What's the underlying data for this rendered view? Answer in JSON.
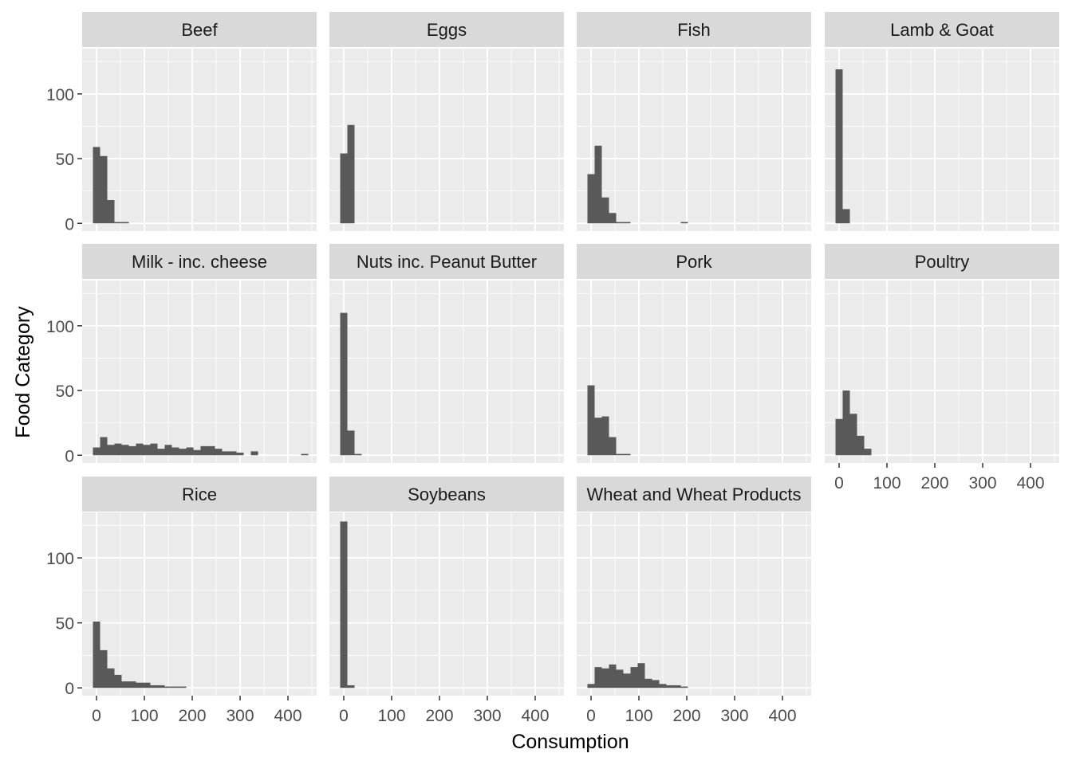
{
  "chart_data": {
    "type": "bar",
    "subtype": "faceted-histogram",
    "xlabel": "Consumption",
    "ylabel": "Food Category",
    "xlim": [
      -30,
      460
    ],
    "ylim": [
      -6,
      135
    ],
    "x_ticks": [
      0,
      100,
      200,
      300,
      400
    ],
    "y_ticks": [
      0,
      50,
      100
    ],
    "bin_width": 15,
    "first_bin_center": 0,
    "grid": true,
    "legend": "none",
    "colors": {
      "bar": "#595959",
      "panel_bg": "#ebebeb",
      "strip_bg": "#d9d9d9",
      "grid": "#ffffff",
      "tick_text": "#4d4d4d",
      "strip_text": "#1a1a1a",
      "axis_title": "#000000"
    },
    "panels": [
      {
        "name": "Beef",
        "counts": [
          59,
          52,
          18,
          1,
          1
        ]
      },
      {
        "name": "Eggs",
        "counts": [
          54,
          76
        ]
      },
      {
        "name": "Fish",
        "counts": [
          38,
          60,
          20,
          8,
          1,
          1,
          0,
          0,
          0,
          0,
          0,
          0,
          0,
          1
        ]
      },
      {
        "name": "Lamb & Goat",
        "counts": [
          119,
          11
        ]
      },
      {
        "name": "Milk - inc. cheese",
        "counts": [
          6,
          14,
          8,
          9,
          8,
          7,
          9,
          8,
          9,
          5,
          8,
          6,
          5,
          6,
          4,
          7,
          7,
          5,
          3,
          3,
          2,
          0,
          3,
          0,
          0,
          0,
          0,
          0,
          0,
          1
        ]
      },
      {
        "name": "Nuts inc. Peanut Butter",
        "counts": [
          110,
          19,
          1
        ]
      },
      {
        "name": "Pork",
        "counts": [
          54,
          29,
          30,
          14,
          1,
          1
        ]
      },
      {
        "name": "Poultry",
        "counts": [
          28,
          50,
          32,
          15,
          5
        ]
      },
      {
        "name": "Rice",
        "counts": [
          51,
          29,
          15,
          10,
          5,
          5,
          4,
          4,
          2,
          2,
          1,
          1,
          1
        ]
      },
      {
        "name": "Soybeans",
        "counts": [
          128,
          2
        ]
      },
      {
        "name": "Wheat and Wheat Products",
        "counts": [
          3,
          16,
          15,
          18,
          14,
          11,
          16,
          19,
          7,
          6,
          3,
          2,
          2,
          1
        ]
      }
    ]
  }
}
